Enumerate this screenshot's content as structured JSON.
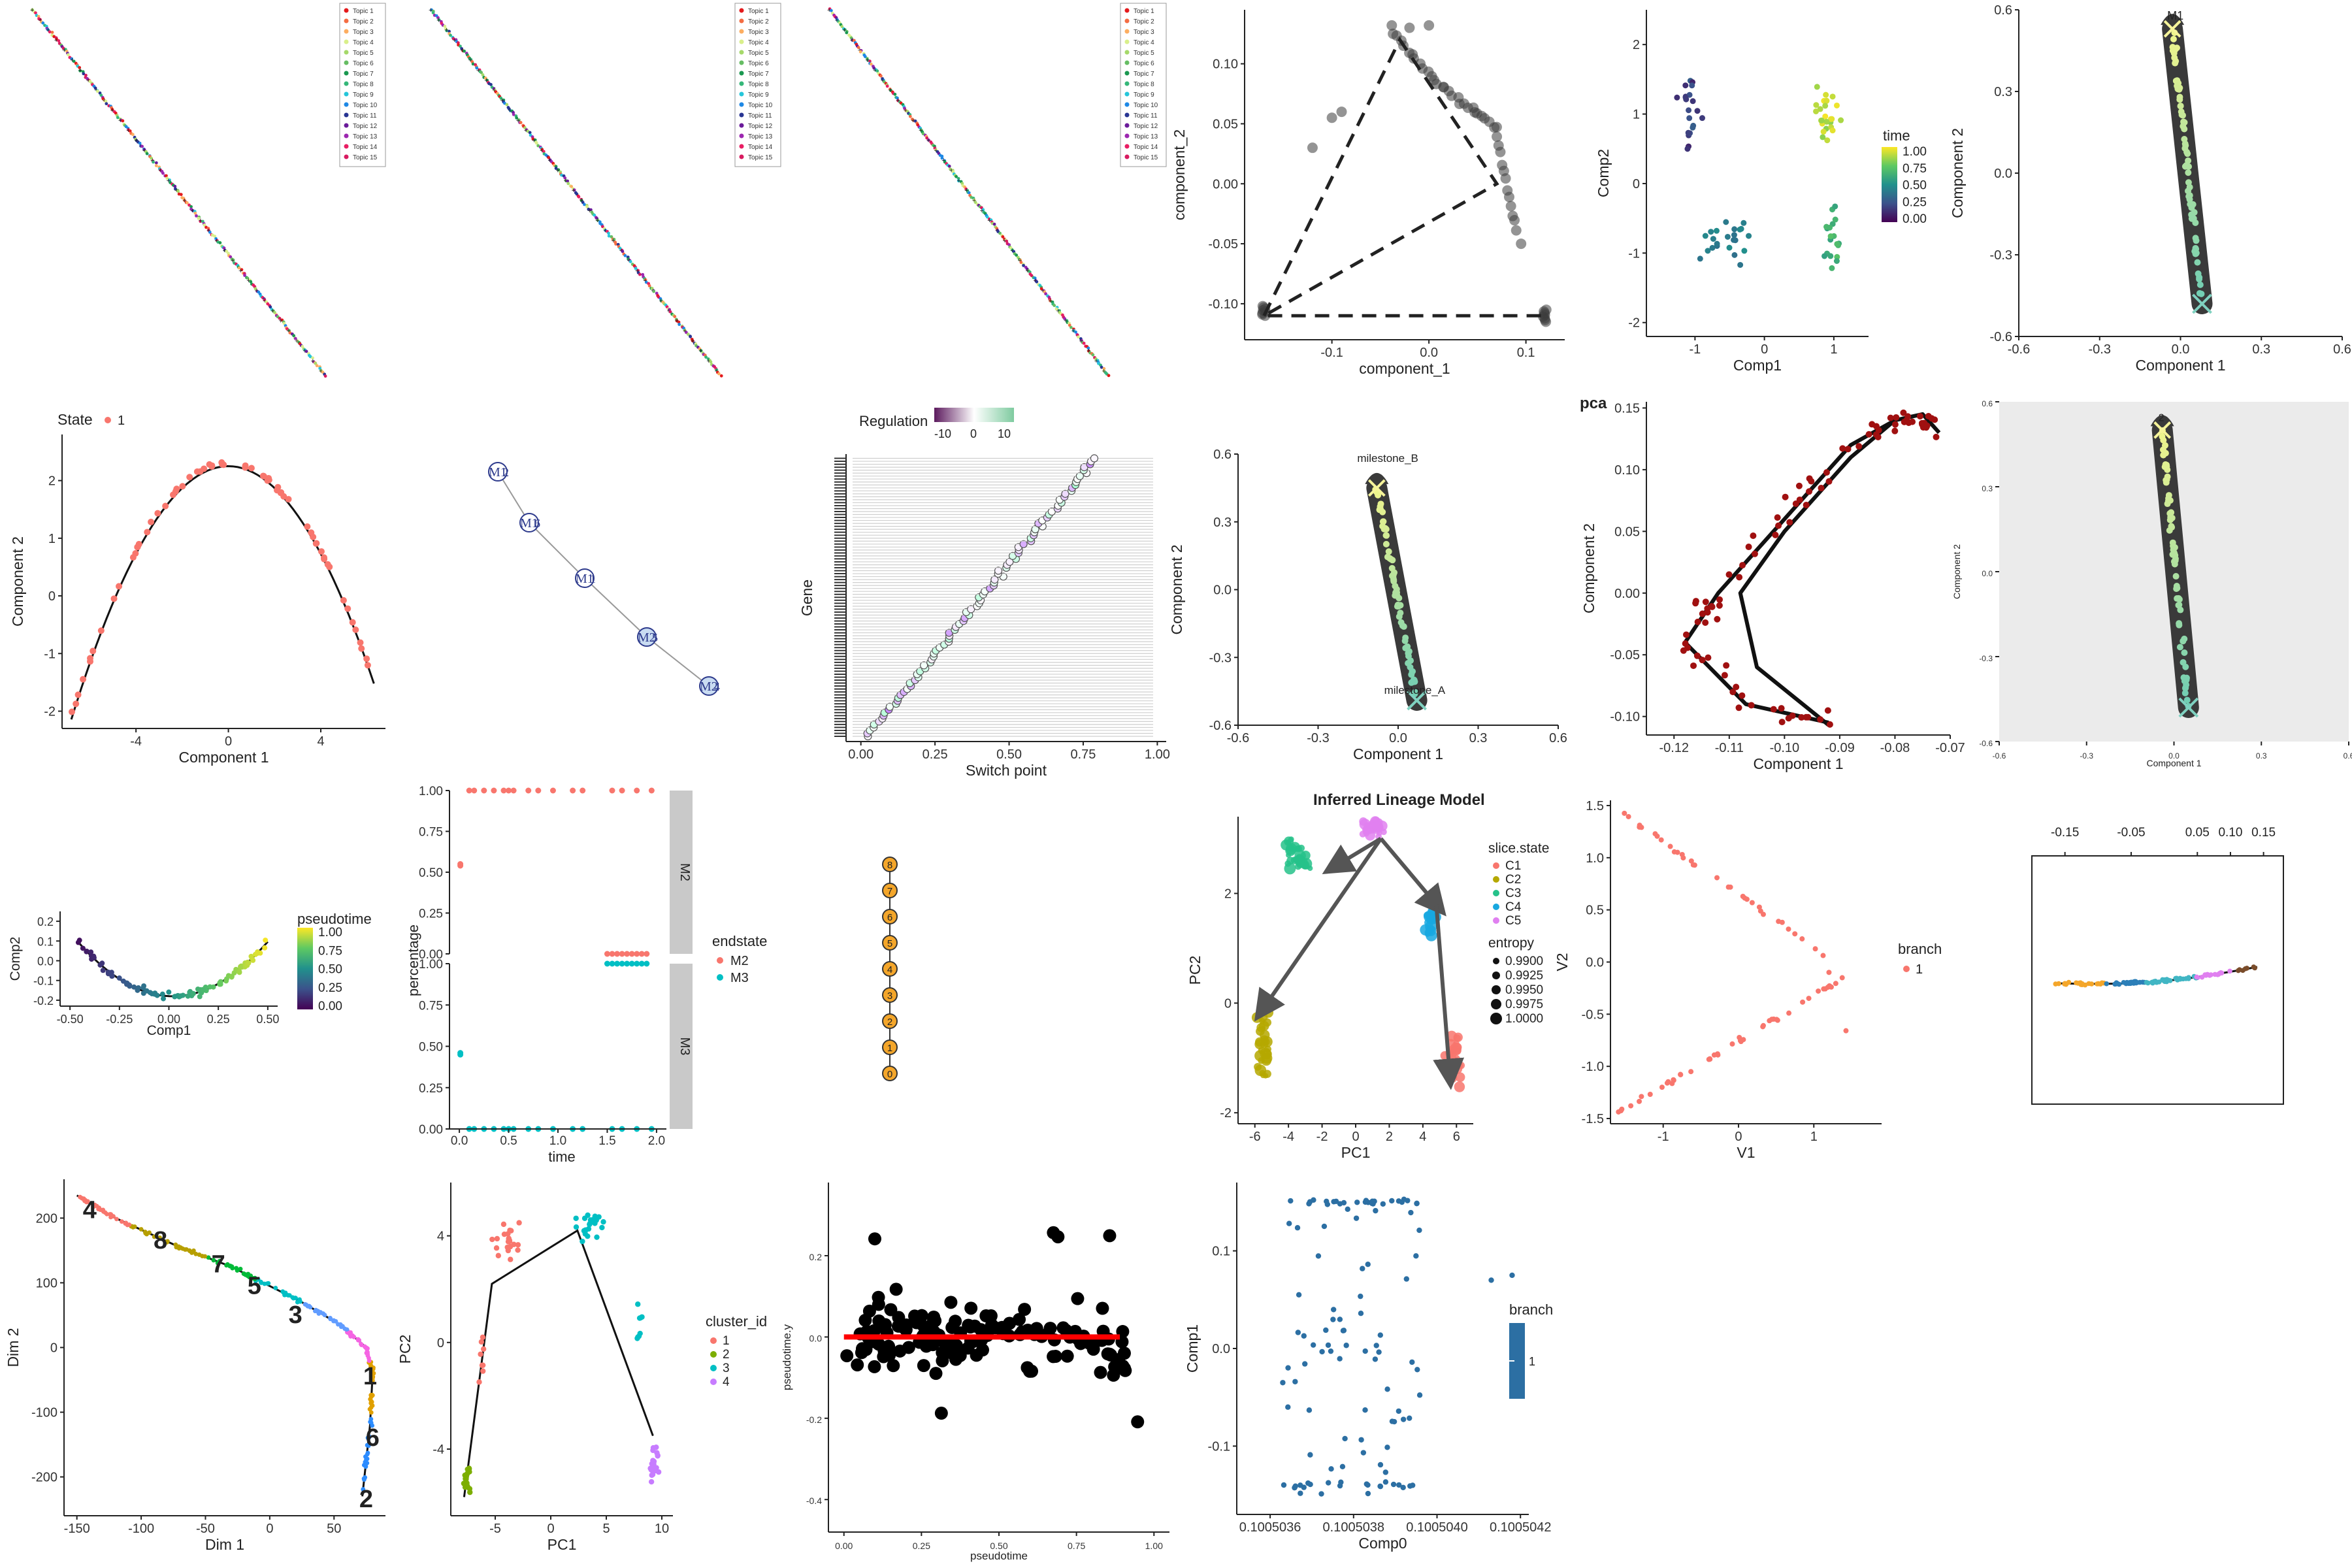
{
  "chart_data": [
    {
      "id": "p1",
      "type": "scatter",
      "title": "",
      "xlabel": "",
      "ylabel": "",
      "legend": {
        "position": "top-right",
        "entries": [
          "Topic 1",
          "Topic 2",
          "Topic 3",
          "Topic 4",
          "Topic 5",
          "Topic 6",
          "Topic 7",
          "Topic 8",
          "Topic 9",
          "Topic 10",
          "Topic 11",
          "Topic 12",
          "Topic 13",
          "Topic 14",
          "Topic 15"
        ]
      },
      "colors": [
        "#e41a1c",
        "#f46d43",
        "#fdae61",
        "#d9ef8b",
        "#a6d96a",
        "#66bd63",
        "#1a9850",
        "#35b779",
        "#26c6da",
        "#1e88e5",
        "#283593",
        "#6a1b9a",
        "#9c27b0",
        "#e91e63",
        "#d81b60"
      ],
      "note_line": "diagonal"
    },
    {
      "id": "p2",
      "type": "scatter",
      "title": "",
      "xlabel": "",
      "ylabel": "",
      "legend": {
        "position": "top-right",
        "entries": [
          "Topic 1",
          "Topic 2",
          "Topic 3",
          "Topic 4",
          "Topic 5",
          "Topic 6",
          "Topic 7",
          "Topic 8",
          "Topic 9",
          "Topic 10",
          "Topic 11",
          "Topic 12",
          "Topic 13",
          "Topic 14",
          "Topic 15"
        ]
      }
    },
    {
      "id": "p3",
      "type": "scatter",
      "title": "",
      "xlabel": "",
      "ylabel": "",
      "legend": {
        "position": "top-right",
        "entries": [
          "Topic 1",
          "Topic 2",
          "Topic 3",
          "Topic 4",
          "Topic 5",
          "Topic 6",
          "Topic 7",
          "Topic 8",
          "Topic 9",
          "Topic 10",
          "Topic 11",
          "Topic 12",
          "Topic 13",
          "Topic 14",
          "Topic 15"
        ]
      }
    },
    {
      "id": "p4",
      "type": "scatter",
      "title": "",
      "xlabel": "component_1",
      "ylabel": "component_2",
      "xlim": [
        -0.19,
        0.14
      ],
      "ylim": [
        -0.13,
        0.145
      ],
      "xticks": [
        "-0.1",
        "0.0",
        "0.1"
      ],
      "yticks": [
        "-0.10",
        "-0.05",
        "0.00",
        "0.05",
        "0.10"
      ],
      "trajectory": [
        [
          -0.17,
          -0.11
        ],
        [
          -0.03,
          0.12
        ],
        [
          0.07,
          0.0
        ],
        [
          -0.17,
          -0.11
        ],
        [
          0.12,
          -0.11
        ]
      ]
    },
    {
      "id": "p5",
      "type": "scatter",
      "title": "",
      "xlabel": "Comp1",
      "ylabel": "Comp2",
      "xlim": [
        -1.7,
        1.5
      ],
      "ylim": [
        -2.2,
        2.5
      ],
      "xticks": [
        "-1",
        "0",
        "1"
      ],
      "yticks": [
        "-2",
        "-1",
        "0",
        "1",
        "2"
      ],
      "legend": {
        "title": "time",
        "position": "right",
        "ticks": [
          "1.00",
          "0.75",
          "0.50",
          "0.25",
          "0.00"
        ]
      }
    },
    {
      "id": "p6",
      "type": "scatter",
      "title": "",
      "xlabel": "Component 1",
      "ylabel": "Component 2",
      "xlim": [
        -0.6,
        0.6
      ],
      "ylim": [
        -0.6,
        0.6
      ],
      "xticks": [
        "-0.6",
        "-0.3",
        "0.0",
        "0.3",
        "0.6"
      ],
      "yticks": [
        "-0.6",
        "-0.3",
        "0.0",
        "0.3",
        "0.6"
      ],
      "labels": [
        "M1"
      ]
    },
    {
      "id": "p7",
      "type": "line",
      "title": "",
      "xlabel": "Component 1",
      "ylabel": "Component 2",
      "xlim": [
        -7.2,
        6.8
      ],
      "ylim": [
        -2.3,
        2.8
      ],
      "xticks": [
        "-4",
        "0",
        "4"
      ],
      "yticks": [
        "-2",
        "-1",
        "0",
        "1",
        "2"
      ],
      "legend": {
        "title": "State",
        "position": "top-left",
        "entries": [
          "1"
        ]
      }
    },
    {
      "id": "p8",
      "type": "network",
      "title": "",
      "nodes": [
        "M1",
        "M1",
        "M1",
        "M2",
        "M2"
      ],
      "node_suffix": [
        "2",
        "6",
        "1",
        "5",
        "4"
      ]
    },
    {
      "id": "p9",
      "type": "scatter",
      "title": "",
      "xlabel": "Switch point",
      "ylabel": "Gene",
      "xlim": [
        -0.05,
        1.03
      ],
      "xticks": [
        "0.00",
        "0.25",
        "0.50",
        "0.75",
        "1.00"
      ],
      "legend": {
        "title": "Regulation",
        "position": "top",
        "ticks": [
          "-10",
          "0",
          "10"
        ]
      }
    },
    {
      "id": "p10",
      "type": "scatter",
      "title": "",
      "xlabel": "Component 1",
      "ylabel": "Component 2",
      "xlim": [
        -0.6,
        0.6
      ],
      "ylim": [
        -0.6,
        0.6
      ],
      "xticks": [
        "-0.6",
        "-0.3",
        "0.0",
        "0.3",
        "0.6"
      ],
      "yticks": [
        "-0.6",
        "-0.3",
        "0.0",
        "0.3",
        "0.6"
      ],
      "labels": [
        "milestone_B",
        "milestone_A"
      ]
    },
    {
      "id": "p11",
      "type": "scatter",
      "title": "pca",
      "xlabel": "Component 1",
      "ylabel": "Component 2",
      "xlim": [
        -0.125,
        -0.07
      ],
      "ylim": [
        -0.115,
        0.155
      ],
      "xticks": [
        "-0.12",
        "-0.11",
        "-0.10",
        "-0.09",
        "-0.08",
        "-0.07"
      ],
      "yticks": [
        "-0.10",
        "-0.05",
        "0.00",
        "0.05",
        "0.10",
        "0.15"
      ]
    },
    {
      "id": "p12",
      "type": "scatter",
      "title": "",
      "xlabel": "Component 1",
      "ylabel": "Component 2",
      "xlim": [
        -0.6,
        0.6
      ],
      "ylim": [
        -0.6,
        0.6
      ],
      "xticks": [
        "-0.6",
        "-0.3",
        "0.0",
        "0.3",
        "0.6"
      ],
      "yticks": [
        "-0.6",
        "-0.3",
        "0.0",
        "0.3",
        "0.6"
      ],
      "labels": [
        "2"
      ]
    },
    {
      "id": "p13",
      "type": "scatter",
      "title": "",
      "xlabel": "Comp1",
      "ylabel": "Comp2",
      "xlim": [
        -0.55,
        0.55
      ],
      "ylim": [
        -0.23,
        0.25
      ],
      "xticks": [
        "-0.50",
        "-0.25",
        "0.00",
        "0.25",
        "0.50"
      ],
      "yticks": [
        "-0.2",
        "-0.1",
        "0.0",
        "0.1",
        "0.2"
      ],
      "legend": {
        "title": "pseudotime",
        "position": "right",
        "ticks": [
          "1.00",
          "0.75",
          "0.50",
          "0.25",
          "0.00"
        ]
      }
    },
    {
      "id": "p14",
      "type": "scatter",
      "title": "",
      "xlabel": "time",
      "ylabel": "percentage",
      "xlim": [
        -0.1,
        2.1
      ],
      "xticks": [
        "0.0",
        "0.5",
        "1.0",
        "1.5",
        "2.0"
      ],
      "yticks": [
        "0.00",
        "0.25",
        "0.50",
        "0.75",
        "1.00"
      ],
      "facets": [
        "M2",
        "M3"
      ],
      "legend": {
        "title": "endstate",
        "position": "right",
        "entries": [
          "M2",
          "M3"
        ]
      }
    },
    {
      "id": "p15",
      "type": "network",
      "title": "",
      "nodes": [
        "8",
        "7",
        "6",
        "5",
        "4",
        "3",
        "2",
        "1",
        "0"
      ]
    },
    {
      "id": "p16",
      "type": "scatter",
      "title": "Inferred Lineage Model",
      "xlabel": "PC1",
      "ylabel": "PC2",
      "xlim": [
        -7,
        7
      ],
      "ylim": [
        -2.2,
        3.4
      ],
      "xticks": [
        "-6",
        "-4",
        "-2",
        "0",
        "2",
        "4",
        "6"
      ],
      "yticks": [
        "-2",
        "0",
        "2"
      ],
      "legend": {
        "title": "slice.state",
        "position": "right",
        "entries": [
          "C1",
          "C2",
          "C3",
          "C4",
          "C5"
        ]
      },
      "legend2": {
        "title": "entropy",
        "entries": [
          "0.9900",
          "0.9925",
          "0.9950",
          "0.9975",
          "1.0000"
        ]
      }
    },
    {
      "id": "p17",
      "type": "scatter",
      "title": "",
      "xlabel": "V1",
      "ylabel": "V2",
      "xlim": [
        -1.7,
        1.9
      ],
      "ylim": [
        -1.55,
        1.55
      ],
      "xticks": [
        "-1",
        "0",
        "1"
      ],
      "yticks": [
        "-1.5",
        "-1.0",
        "-0.5",
        "0.0",
        "0.5",
        "1.0",
        "1.5"
      ],
      "legend": {
        "title": "branch",
        "position": "right",
        "entries": [
          "1"
        ]
      }
    },
    {
      "id": "p18",
      "type": "scatter",
      "title": "",
      "xlabel": "",
      "ylabel": "",
      "xlim": [
        -0.2,
        0.18
      ],
      "xticks": [
        "-0.15",
        "-0.05",
        "0.05",
        "0.10",
        "0.15"
      ]
    },
    {
      "id": "p19",
      "type": "scatter",
      "title": "",
      "xlabel": "Dim 1",
      "ylabel": "Dim 2",
      "xlim": [
        -160,
        90
      ],
      "ylim": [
        -260,
        260
      ],
      "xticks": [
        "-150",
        "-100",
        "-50",
        "0",
        "50"
      ],
      "yticks": [
        "-200",
        "-100",
        "0",
        "100",
        "200"
      ],
      "labels": [
        "4",
        "8",
        "7",
        "5",
        "3",
        "1",
        "6",
        "2"
      ]
    },
    {
      "id": "p20",
      "type": "scatter",
      "title": "",
      "xlabel": "PC1",
      "ylabel": "PC2",
      "xlim": [
        -9,
        11
      ],
      "ylim": [
        -6.5,
        6
      ],
      "xticks": [
        "-5",
        "0",
        "5",
        "10"
      ],
      "yticks": [
        "-4",
        "0",
        "4"
      ],
      "legend": {
        "title": "cluster_id",
        "position": "right",
        "entries": [
          "1",
          "2",
          "3",
          "4"
        ]
      }
    },
    {
      "id": "p21",
      "type": "scatter",
      "title": "",
      "xlabel": "pseudotime",
      "ylabel": "pseudotime.y",
      "xlim": [
        -0.05,
        1.05
      ],
      "ylim": [
        -0.48,
        0.38
      ],
      "xticks": [
        "0.00",
        "0.25",
        "0.50",
        "0.75",
        "1.00"
      ],
      "yticks": [
        "-0.4",
        "-0.2",
        "0.0",
        "0.2"
      ]
    },
    {
      "id": "p22",
      "type": "scatter",
      "title": "",
      "xlabel": "Comp0",
      "ylabel": "Comp1",
      "xlim": [
        0.10050352,
        0.10050422
      ],
      "ylim": [
        -0.17,
        0.17
      ],
      "xticks": [
        "0.1005036",
        "0.1005038",
        "0.1005040",
        "0.1005042"
      ],
      "yticks": [
        "-0.1",
        "0.0",
        "0.1"
      ],
      "legend": {
        "title": "branch",
        "position": "right",
        "entries": [
          "1"
        ]
      }
    }
  ],
  "colors": {
    "salmon": "#f8766d",
    "teal": "#00bfc4",
    "darkred": "#8b0000",
    "steel": "#2c6fa3",
    "orange": "#f4a62a",
    "trail": "#3d3d3d"
  }
}
